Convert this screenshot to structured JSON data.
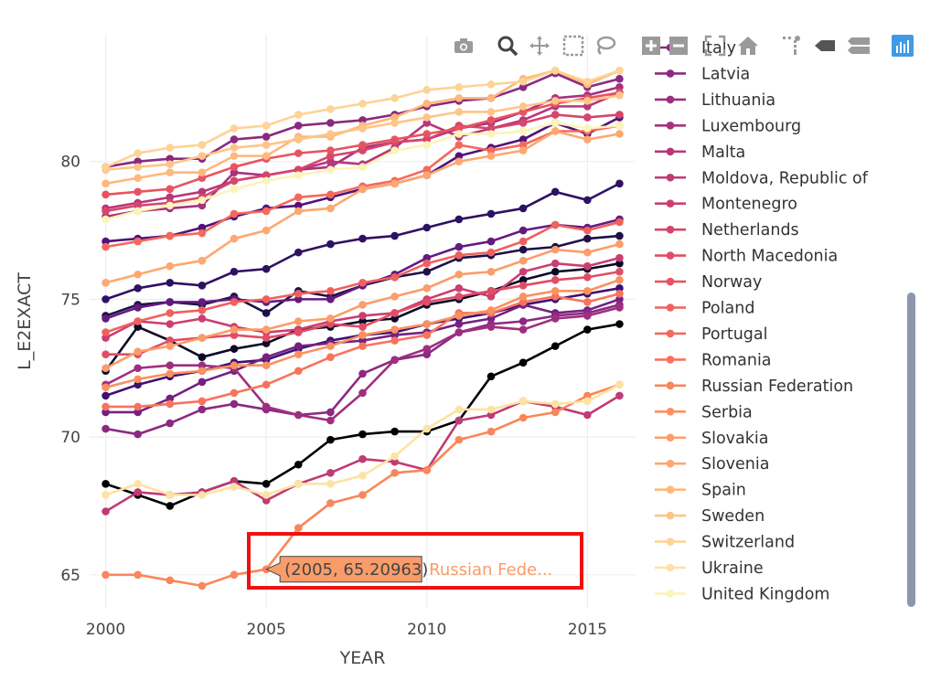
{
  "modebar": {
    "icons": [
      "camera-icon",
      "zoom-icon",
      "pan-icon",
      "box-select-icon",
      "lasso-icon",
      "zoom-in-icon",
      "zoom-out-icon",
      "autoscale-icon",
      "home-icon",
      "spike-lines-icon",
      "hover-closest-icon",
      "hover-compare-icon",
      "plotly-logo-icon"
    ]
  },
  "tooltip": {
    "value": "(2005, 65.20963)",
    "name": "Russian Fede..."
  },
  "chart_data": {
    "type": "line",
    "xlabel": "YEAR",
    "ylabel": "L_E2EXACT",
    "xlim": [
      1999.5,
      2016.5
    ],
    "ylim": [
      63.8,
      84.6
    ],
    "xticks": [
      2000,
      2005,
      2010,
      2015
    ],
    "yticks": [
      65,
      70,
      75,
      80
    ],
    "grid": true,
    "legend_position": "right",
    "x": [
      2000,
      2001,
      2002,
      2003,
      2004,
      2005,
      2006,
      2007,
      2008,
      2009,
      2010,
      2011,
      2012,
      2013,
      2014,
      2015,
      2016
    ],
    "series": [
      {
        "name": "Italy",
        "color": "#8a2a7e",
        "values": [
          79.8,
          80.0,
          80.1,
          80.1,
          80.8,
          80.9,
          81.3,
          81.4,
          81.5,
          81.7,
          82.0,
          82.2,
          82.3,
          82.7,
          83.2,
          82.7,
          83.0
        ]
      },
      {
        "name": "Latvia",
        "color": "#8c2981",
        "values": [
          70.3,
          70.1,
          70.5,
          71.0,
          71.2,
          71.0,
          70.8,
          70.9,
          72.3,
          72.8,
          73.0,
          73.8,
          74.1,
          74.2,
          74.4,
          74.5,
          74.8
        ]
      },
      {
        "name": "Lithuania",
        "color": "#9e2f7f",
        "values": [
          71.9,
          72.5,
          72.6,
          72.6,
          72.5,
          71.1,
          70.8,
          70.6,
          71.6,
          72.8,
          73.2,
          73.8,
          74.0,
          73.9,
          74.3,
          74.4,
          74.7
        ]
      },
      {
        "name": "Luxembourg",
        "color": "#a8327d",
        "values": [
          78.0,
          78.2,
          78.3,
          78.4,
          79.6,
          79.5,
          79.7,
          79.8,
          80.5,
          80.7,
          80.8,
          81.2,
          81.4,
          81.8,
          82.3,
          82.4,
          82.7
        ]
      },
      {
        "name": "Malta",
        "color": "#b73779",
        "values": [
          78.3,
          78.5,
          78.7,
          78.9,
          79.3,
          79.5,
          79.7,
          80.0,
          79.9,
          80.5,
          81.4,
          80.9,
          81.2,
          81.5,
          82.0,
          82.0,
          82.5
        ]
      },
      {
        "name": "Moldova, Republic of",
        "color": "#c03a76",
        "values": [
          67.3,
          68.0,
          67.9,
          68.0,
          68.4,
          67.7,
          68.3,
          68.7,
          69.2,
          69.1,
          68.8,
          70.6,
          70.8,
          71.3,
          71.1,
          70.8,
          71.5
        ]
      },
      {
        "name": "Montenegro",
        "color": "#cb3e71",
        "values": [
          73.6,
          74.2,
          74.1,
          74.3,
          74.0,
          73.8,
          73.9,
          74.2,
          74.4,
          74.5,
          75.0,
          75.4,
          75.1,
          76.0,
          76.3,
          76.2,
          76.5
        ]
      },
      {
        "name": "Netherlands",
        "color": "#d6456c",
        "values": [
          78.2,
          78.4,
          78.5,
          78.7,
          79.3,
          79.5,
          79.7,
          80.2,
          80.4,
          80.7,
          80.8,
          81.3,
          81.2,
          81.4,
          81.7,
          81.6,
          81.7
        ]
      },
      {
        "name": "North Macedonia",
        "color": "#e04d67",
        "values": [
          73.0,
          73.0,
          73.5,
          73.6,
          73.7,
          73.6,
          73.8,
          74.1,
          74.0,
          74.5,
          74.9,
          75.1,
          75.3,
          75.5,
          75.7,
          75.8,
          76.0
        ]
      },
      {
        "name": "Norway",
        "color": "#e85362",
        "values": [
          78.8,
          78.9,
          79.0,
          79.4,
          79.8,
          80.1,
          80.3,
          80.4,
          80.6,
          80.8,
          81.0,
          81.2,
          81.5,
          81.8,
          82.1,
          82.3,
          82.5
        ]
      },
      {
        "name": "Poland",
        "color": "#f0605d",
        "values": [
          73.8,
          74.2,
          74.5,
          74.6,
          74.9,
          75.0,
          75.2,
          75.3,
          75.6,
          75.8,
          76.3,
          76.6,
          76.7,
          77.1,
          77.7,
          77.5,
          77.8
        ]
      },
      {
        "name": "Portugal",
        "color": "#f4695c",
        "values": [
          76.9,
          77.1,
          77.3,
          77.4,
          78.1,
          78.2,
          78.7,
          78.8,
          79.1,
          79.3,
          79.7,
          80.6,
          80.4,
          80.6,
          81.1,
          81.1,
          81.3
        ]
      },
      {
        "name": "Romania",
        "color": "#f7735c",
        "values": [
          71.1,
          71.1,
          71.2,
          71.3,
          71.6,
          71.9,
          72.4,
          72.9,
          73.3,
          73.5,
          73.7,
          74.5,
          74.5,
          74.9,
          75.1,
          74.9,
          75.2
        ]
      },
      {
        "name": "Russian Federation",
        "color": "#fa8659",
        "values": [
          65.0,
          65.0,
          64.8,
          64.6,
          65.0,
          65.2,
          66.7,
          67.6,
          67.9,
          68.7,
          68.8,
          69.9,
          70.2,
          70.7,
          70.9,
          71.5,
          71.9
        ]
      },
      {
        "name": "Serbia",
        "color": "#fb9160",
        "values": [
          71.8,
          72.1,
          72.3,
          72.4,
          72.6,
          72.6,
          73.0,
          73.3,
          73.7,
          73.9,
          74.1,
          74.4,
          74.6,
          75.1,
          75.3,
          75.3,
          75.7
        ]
      },
      {
        "name": "Slovakia",
        "color": "#fc9c68",
        "values": [
          72.5,
          73.1,
          73.3,
          73.6,
          73.9,
          73.9,
          74.2,
          74.3,
          74.8,
          75.1,
          75.4,
          75.9,
          76.0,
          76.4,
          76.8,
          76.7,
          77.0
        ]
      },
      {
        "name": "Slovenia",
        "color": "#fda870",
        "values": [
          75.6,
          75.9,
          76.2,
          76.4,
          77.2,
          77.5,
          78.2,
          78.3,
          79.0,
          79.2,
          79.5,
          80.0,
          80.2,
          80.4,
          81.1,
          80.8,
          81.0
        ]
      },
      {
        "name": "Spain",
        "color": "#feb87c",
        "values": [
          79.2,
          79.4,
          79.6,
          79.6,
          80.2,
          80.2,
          80.9,
          80.9,
          81.3,
          81.6,
          82.1,
          82.3,
          82.3,
          83.0,
          83.3,
          82.8,
          83.3
        ]
      },
      {
        "name": "Sweden",
        "color": "#fec587",
        "values": [
          79.7,
          79.8,
          79.9,
          80.2,
          80.5,
          80.6,
          80.8,
          81.0,
          81.2,
          81.4,
          81.6,
          81.8,
          81.8,
          82.0,
          82.2,
          82.2,
          82.4
        ]
      },
      {
        "name": "Switzerland",
        "color": "#fed395",
        "values": [
          79.8,
          80.3,
          80.5,
          80.6,
          81.2,
          81.3,
          81.7,
          81.9,
          82.1,
          82.3,
          82.6,
          82.7,
          82.8,
          82.9,
          83.3,
          82.9,
          83.3
        ]
      },
      {
        "name": "Ukraine",
        "color": "#fde3a3",
        "values": [
          67.9,
          68.3,
          67.9,
          67.9,
          68.2,
          67.9,
          68.3,
          68.3,
          68.6,
          69.3,
          70.3,
          71.0,
          71.0,
          71.3,
          71.2,
          71.3,
          71.9
        ]
      },
      {
        "name": "United Kingdom",
        "color": "#fcf4b8",
        "values": [
          77.9,
          78.2,
          78.4,
          78.6,
          79.0,
          79.3,
          79.5,
          79.7,
          79.8,
          80.4,
          80.6,
          81.0,
          81.0,
          81.1,
          81.4,
          81.2,
          81.3
        ]
      }
    ],
    "other_series": [
      {
        "color": "#000004",
        "values": [
          68.3,
          67.9,
          67.5,
          68.0,
          68.4,
          68.3,
          69.0,
          69.9,
          70.1,
          70.2,
          70.2,
          70.6,
          72.2,
          72.7,
          73.3,
          73.9,
          74.1
        ]
      },
      {
        "color": "#0c0927",
        "values": [
          72.4,
          74.0,
          73.5,
          72.9,
          73.2,
          73.4,
          73.9,
          74.0,
          74.2,
          74.3,
          74.8,
          75.0,
          75.3,
          75.7,
          76.0,
          76.1,
          76.3
        ]
      },
      {
        "color": "#1d1147",
        "values": [
          74.4,
          74.8,
          74.9,
          74.8,
          75.1,
          74.5,
          75.3,
          75.1,
          75.5,
          75.8,
          76.0,
          76.5,
          76.6,
          76.8,
          76.9,
          77.2,
          77.3
        ]
      },
      {
        "color": "#2f1163",
        "values": [
          75.0,
          75.4,
          75.6,
          75.5,
          76.0,
          76.1,
          76.7,
          77.0,
          77.2,
          77.3,
          77.6,
          77.9,
          78.1,
          78.3,
          78.9,
          78.6,
          79.2
        ]
      },
      {
        "color": "#3f0f72",
        "values": [
          71.5,
          71.9,
          72.2,
          72.4,
          72.7,
          72.8,
          73.2,
          73.5,
          73.7,
          73.8,
          74.1,
          74.3,
          74.5,
          74.8,
          75.0,
          75.2,
          75.4
        ]
      },
      {
        "color": "#51127c",
        "values": [
          77.1,
          77.2,
          77.3,
          77.6,
          78.0,
          78.3,
          78.4,
          78.7,
          79.0,
          79.2,
          79.5,
          80.2,
          80.5,
          80.8,
          81.4,
          81.0,
          81.6
        ]
      },
      {
        "color": "#641a80",
        "values": [
          74.3,
          74.7,
          74.9,
          74.9,
          75.0,
          74.9,
          75.0,
          75.0,
          75.5,
          75.9,
          76.5,
          76.9,
          77.1,
          77.5,
          77.7,
          77.6,
          77.9
        ]
      },
      {
        "color": "#752181",
        "values": [
          70.9,
          70.9,
          71.4,
          72.0,
          72.4,
          72.9,
          73.3,
          73.4,
          73.5,
          73.7,
          73.8,
          74.1,
          74.3,
          74.8,
          74.5,
          74.6,
          75.0
        ]
      }
    ]
  }
}
